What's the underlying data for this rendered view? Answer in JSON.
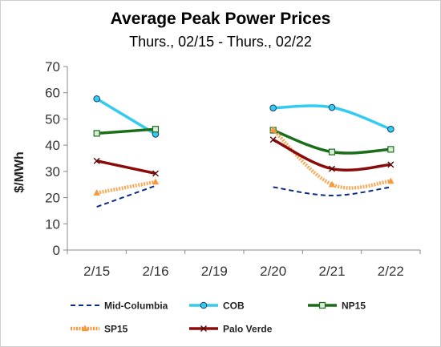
{
  "chart_data": {
    "type": "line",
    "title": "Average Peak Power Prices",
    "subtitle": "Thurs., 02/15 - Thurs., 02/22",
    "xlabel": "",
    "ylabel": "$/MWh",
    "ylim": [
      0,
      70
    ],
    "yticks": [
      0,
      10,
      20,
      30,
      40,
      50,
      60,
      70
    ],
    "categories": [
      "2/15",
      "2/16",
      "2/19",
      "2/20",
      "2/21",
      "2/22"
    ],
    "grid": false,
    "legend_position": "bottom",
    "series": [
      {
        "name": "Mid-Columbia",
        "color": "#0b2c8c",
        "dash": "dashed",
        "marker": "none",
        "values": [
          16.5,
          24.5,
          null,
          24,
          20.8,
          24
        ]
      },
      {
        "name": "COB",
        "color": "#33ccf0",
        "dash": "solid",
        "marker": "circle",
        "values": [
          57.7,
          44.2,
          null,
          54.2,
          54.4,
          46.1
        ]
      },
      {
        "name": "NP15",
        "color": "#1a6e1a",
        "dash": "solid",
        "marker": "square",
        "values": [
          44.5,
          46.1,
          null,
          45.7,
          37.4,
          38.4
        ]
      },
      {
        "name": "SP15",
        "color": "#f79a3c",
        "dash": "dotted",
        "marker": "triangle",
        "values": [
          21.8,
          26,
          null,
          45.9,
          25,
          26.3
        ]
      },
      {
        "name": "Palo Verde",
        "color": "#8b0b0b",
        "dash": "solid",
        "marker": "x",
        "values": [
          34,
          29.2,
          null,
          42.1,
          31,
          32.6
        ]
      }
    ]
  }
}
